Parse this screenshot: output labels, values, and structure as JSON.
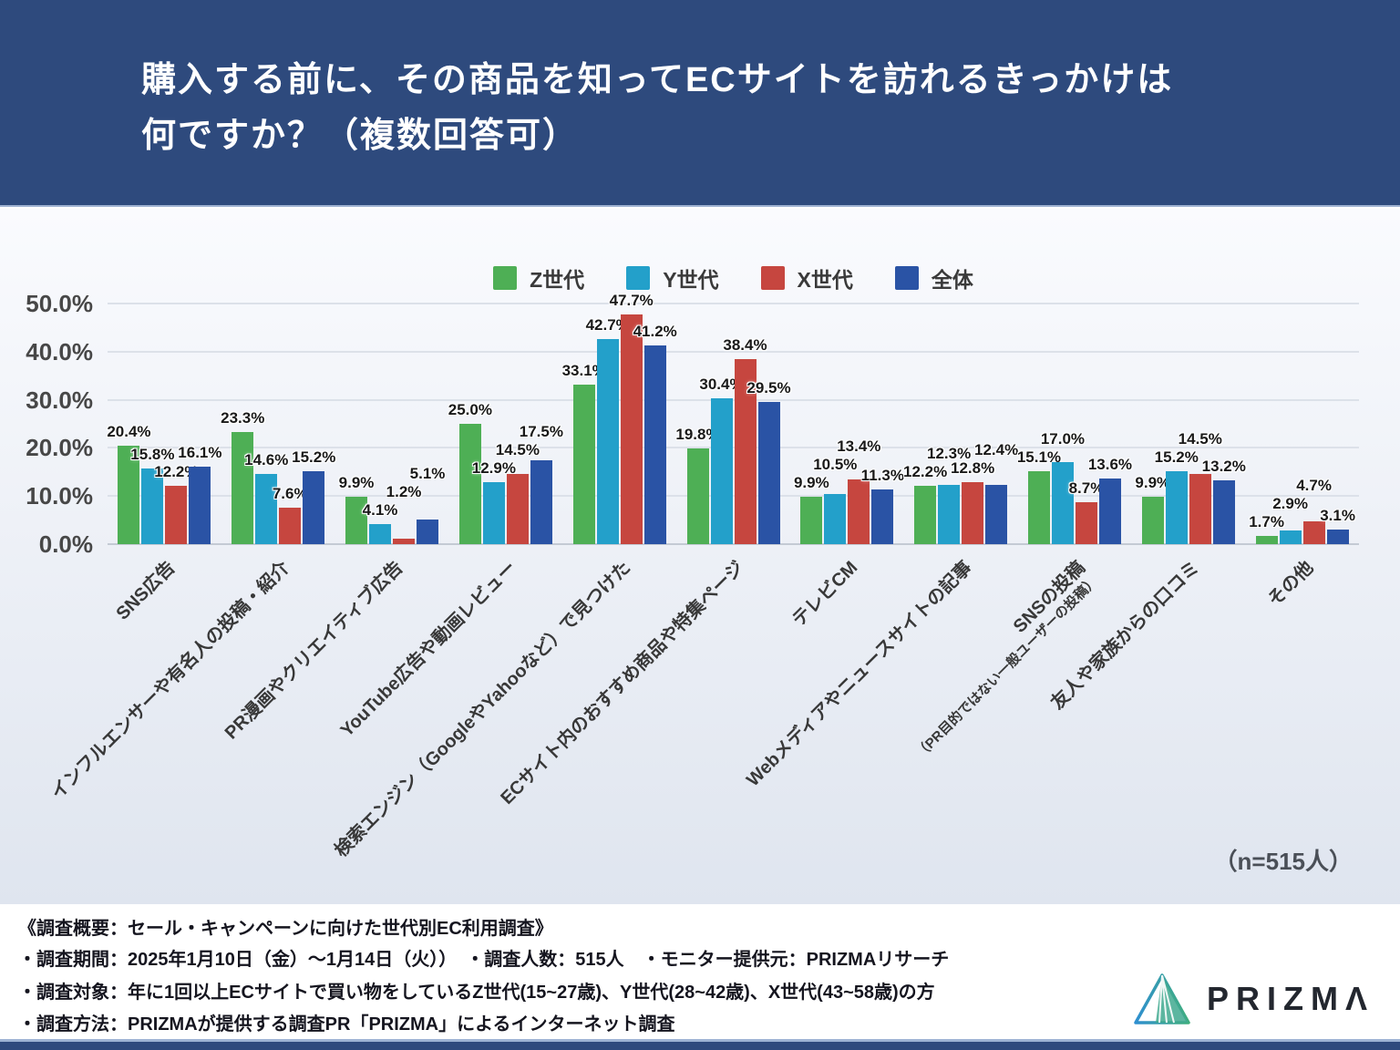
{
  "header": {
    "title_lines": [
      "購入する前に、その商品を知ってECサイトを訪れるきっかけは",
      "何ですか？（複数回答可）"
    ],
    "bg_color": "#2E4A7D"
  },
  "chart_data": {
    "type": "bar",
    "title": "購入する前に、その商品を知ってECサイトを訪れるきっかけは何ですか？（複数回答可）",
    "unit": "%",
    "ylim": [
      0,
      50
    ],
    "yticks": [
      0,
      10,
      20,
      30,
      40,
      50
    ],
    "ytick_labels": [
      "0.0%",
      "10.0%",
      "20.0%",
      "30.0%",
      "40.0%",
      "50.0%"
    ],
    "grid": true,
    "legend_position": "top",
    "categories": [
      {
        "label": "SNS広告",
        "sub": ""
      },
      {
        "label": "インフルエンサーや有名人の投稿・紹介",
        "sub": ""
      },
      {
        "label": "PR漫画やクリエイティブ広告",
        "sub": ""
      },
      {
        "label": "YouTube広告や動画レビュー",
        "sub": ""
      },
      {
        "label": "検索エンジン（GoogleやYahooなど）で見つけた",
        "sub": ""
      },
      {
        "label": "ECサイト内のおすすめ商品や特集ページ",
        "sub": ""
      },
      {
        "label": "テレビCM",
        "sub": ""
      },
      {
        "label": "Webメディアやニュースサイトの記事",
        "sub": ""
      },
      {
        "label": "SNSの投稿",
        "sub": "（PR目的ではない一般ユーザーの投稿）"
      },
      {
        "label": "友人や家族からの口コミ",
        "sub": ""
      },
      {
        "label": "その他",
        "sub": ""
      }
    ],
    "series": [
      {
        "name": "Z世代",
        "color": "#4EAF55",
        "values": [
          20.4,
          23.3,
          9.9,
          25.0,
          33.1,
          19.8,
          9.9,
          12.2,
          15.1,
          9.9,
          1.7
        ]
      },
      {
        "name": "Y世代",
        "color": "#23A0CA",
        "values": [
          15.8,
          14.6,
          4.1,
          12.9,
          42.7,
          30.4,
          10.5,
          12.3,
          17.0,
          15.2,
          2.9
        ]
      },
      {
        "name": "X世代",
        "color": "#C6463F",
        "values": [
          12.2,
          7.6,
          1.2,
          14.5,
          47.7,
          38.4,
          13.4,
          12.8,
          8.7,
          14.5,
          4.7
        ]
      },
      {
        "name": "全体",
        "color": "#2A53A5",
        "values": [
          16.1,
          15.2,
          5.1,
          17.5,
          41.2,
          29.5,
          11.3,
          12.4,
          13.6,
          13.2,
          3.1
        ]
      }
    ],
    "sample_note": "（n=515人）"
  },
  "footer": {
    "lines": [
      "《調査概要：セール・キャンペーンに向けた世代別EC利用調査》",
      "・調査期間：2025年1月10日（金）〜1月14日（火））　・調査人数：515人　・モニター提供元：PRIZMAリサーチ",
      "・調査対象：年に1回以上ECサイトで買い物をしているZ世代(15~27歳)、Y世代(28~42歳)、X世代(43~58歳)の方",
      "・調査方法：PRIZMAが提供する調査PR「PRIZMA」によるインターネット調査"
    ]
  },
  "logo": {
    "wordmark": "PRIZMΛ"
  }
}
